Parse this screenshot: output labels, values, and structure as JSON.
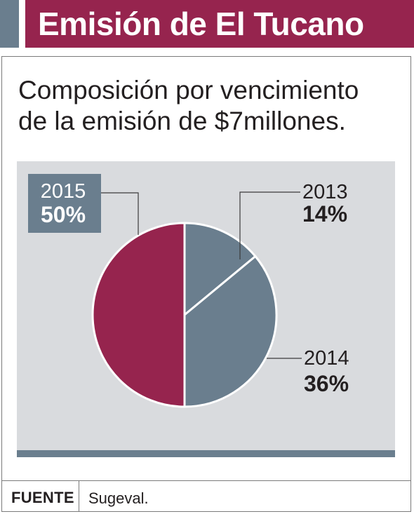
{
  "header": {
    "title": "Emisión de El Tucano"
  },
  "colors": {
    "brand_red": "#96244e",
    "slate": "#6a7e8e",
    "panel_bg": "#d9dbde",
    "text": "#231f20"
  },
  "chart_data": {
    "type": "pie",
    "title": "Composición por vencimiento de la emisión de $7millones.",
    "title_lines": [
      "Composición por vencimiento",
      "de la emisión de $7millones."
    ],
    "slices": [
      {
        "label": "2013",
        "value": 14,
        "value_label": "14%",
        "color": "#6a7e8e"
      },
      {
        "label": "2014",
        "value": 36,
        "value_label": "36%",
        "color": "#6a7e8e"
      },
      {
        "label": "2015",
        "value": 50,
        "value_label": "50%",
        "color": "#96244e"
      }
    ],
    "start_angle": "12 o'clock",
    "direction": "clockwise"
  },
  "footer": {
    "label": "FUENTE",
    "source": "Sugeval."
  }
}
